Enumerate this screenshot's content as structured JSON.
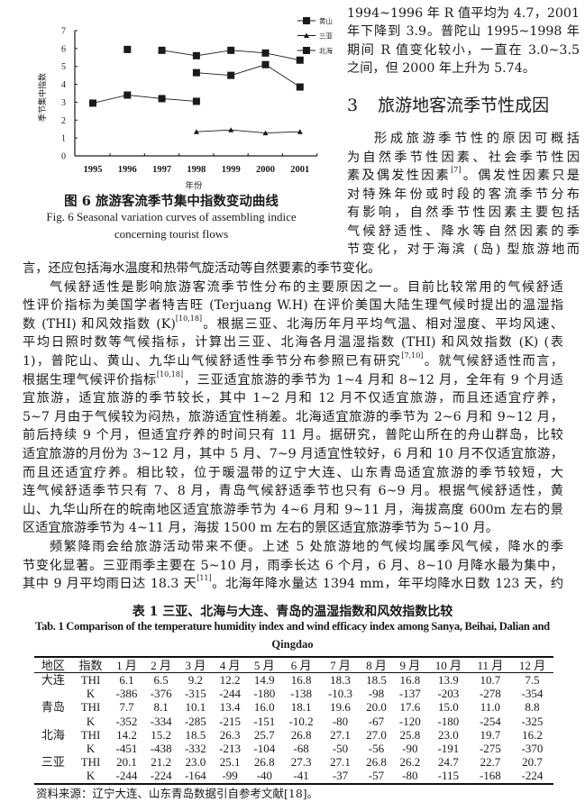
{
  "figure": {
    "caption_cn": "图 6  旅游客流季节集中指数变动曲线",
    "caption_en_line1": "Fig. 6  Seasonal variation curves of assembling indice",
    "caption_en_line2": "concerning tourist flows",
    "chart_data": {
      "type": "line",
      "xlabel": "年份",
      "ylabel": "季节集中指数",
      "x": [
        "1995",
        "1996",
        "1997",
        "1998",
        "1999",
        "2000",
        "2001"
      ],
      "ylim": [
        0,
        7
      ],
      "yticks": [
        "0",
        "1",
        "2",
        "3",
        "4",
        "5",
        "6",
        "7"
      ],
      "grid": false,
      "legend_position": "top-right",
      "legend": [
        {
          "name": "黄山",
          "marker": "square"
        },
        {
          "name": "三亚",
          "marker": "triangle"
        },
        {
          "name": "北海",
          "marker": "square"
        }
      ],
      "series": [
        {
          "marker": "square",
          "values": [
            null,
            5.95,
            5.9,
            5.6,
            5.9,
            5.75,
            5.35
          ]
        },
        {
          "marker": "square",
          "values": [
            null,
            null,
            null,
            4.65,
            4.5,
            5.1,
            3.85
          ]
        },
        {
          "marker": "square",
          "values": [
            2.95,
            3.4,
            3.2,
            3.05,
            null,
            null,
            null
          ]
        },
        {
          "marker": "triangle",
          "values": [
            null,
            null,
            null,
            1.35,
            1.45,
            1.28,
            1.35
          ]
        }
      ],
      "line_breaks": [
        [
          1,
          2
        ]
      ],
      "color": "#1a1a1a"
    }
  },
  "right_column": {
    "top_lines": [
      "1994~1996 年 R 值平均为 4.7，2001",
      "年下降到 3.9。普陀山 1995~1998 年",
      "期间 R 值变化较小，一直在 3.0~3.5",
      "之间，但 2000 年上升为 5.74。"
    ],
    "section_number": "3",
    "section_title": "旅游地客流季节性成因",
    "para_lines": [
      "形成旅游季节性的原因可概括",
      "为自然季节性因素、社会季节性因",
      "素及偶发性因素[7]。偶发性因素只是",
      "对特殊年份或时段的客流季节分布",
      "有影响，自然季节性因素主要包括",
      "气候舒适性、降水等自然因素的季",
      "节变化，对于海滨 (岛) 型旅游地而"
    ]
  },
  "body_lines": [
    "言，还应包括海水温度和热带气旋活动等自然要素的季节变化。",
    "气候舒适性是影响旅游客流季节性分布的主要原因之一。目前比较常用的气候舒适",
    "性评价指标为美国学者特吉旺 (Terjuang W.H) 在评价美国大陆生理气候时提出的温湿指",
    "数 (THI) 和风效指数 (K)[10,18]。根据三亚、北海历年月平均气温、相对湿度、平均风速、",
    "平均日照时数等气候指标，计算出三亚、北海各月温湿指数 (THI) 和风效指数 (K) (表",
    "1)，普陀山、黄山、九华山气候舒适性季节分布参照已有研究[7,10]。就气候舒适性而言，",
    "根据生理气候评价指标[10,18]，三亚适宜旅游的季节为 1~4 月和 8~12 月，全年有 9 个月适",
    "宜旅游，适宜旅游的季节较长，其中 1~2 月和 12 月不仅适宜旅游，而且还适宜疗养，",
    "5~7 月由于气候较为闷热，旅游适宜性稍差。北海适宜旅游的季节为 2~6 月和 9~12 月，",
    "前后持续 9 个月，但适宜疗养的时间只有 11 月。据研究，普陀山所在的舟山群岛，比较",
    "适宜旅游的月份为 3~12 月，其中 5 月、7~9 月适宜性较好，6 月和 10 月不仅适宜旅游，",
    "而且还适宜疗养。相比较，位于暖温带的辽宁大连、山东青岛适宜旅游的季节较短，大",
    "连气候舒适季节只有 7、8 月，青岛气候舒适季节也只有 6~9 月。根据气候舒适性，黄",
    "山、九华山所在的皖南地区适宜旅游季节为 4~6 月和 9~11 月，海拔高度 600m 左右的景",
    "区适宜旅游季节为 4~11 月，海拔 1500 m 左右的景区适宜旅游季节为 5~10 月。",
    "频繁降雨会给旅游活动带来不便。上述 5 处旅游地的气候均属季风气候，降水的季",
    "节变化显著。三亚雨季主要在 5~10 月，雨季长达 6 个月，6 月、8~10 月降水最为集中，",
    "其中 9 月平均雨日达 18.3 天[11]。北海年降水量达 1394 mm，年平均降水日数 123 天，约"
  ],
  "table": {
    "title_cn": "表 1  三亚、北海与大连、青岛的温湿指数和风效指数比较",
    "title_en_line1": "Tab. 1  Comparison of the temperature humidity index and wind efficacy index among Sanya, Beihai, Dalian and",
    "title_en_line2": "Qingdao",
    "headers": [
      "地区",
      "指数",
      "1 月",
      "2 月",
      "3 月",
      "4 月",
      "5 月",
      "6 月",
      "7 月",
      "8 月",
      "9 月",
      "10 月",
      "11 月",
      "12 月"
    ],
    "rows": [
      {
        "region": "大连",
        "index": "THI",
        "values": [
          "6.1",
          "6.5",
          "9.2",
          "12.2",
          "14.9",
          "16.8",
          "18.3",
          "18.5",
          "16.8",
          "13.9",
          "10.7",
          "7.5"
        ]
      },
      {
        "region": "",
        "index": "K",
        "values": [
          "-386",
          "-376",
          "-315",
          "-244",
          "-180",
          "-138",
          "-10.3",
          "-98",
          "-137",
          "-203",
          "-278",
          "-354"
        ]
      },
      {
        "region": "青岛",
        "index": "THI",
        "values": [
          "7.7",
          "8.1",
          "10.1",
          "13.4",
          "16.0",
          "18.1",
          "19.6",
          "20.0",
          "17.6",
          "15.0",
          "11.0",
          "8.8"
        ]
      },
      {
        "region": "",
        "index": "K",
        "values": [
          "-352",
          "-334",
          "-285",
          "-215",
          "-151",
          "-10.2",
          "-80",
          "-67",
          "-120",
          "-180",
          "-254",
          "-325"
        ]
      },
      {
        "region": "北海",
        "index": "THI",
        "values": [
          "14.2",
          "15.2",
          "18.5",
          "26.3",
          "25.7",
          "26.8",
          "27.1",
          "27.0",
          "25.8",
          "23.0",
          "19.7",
          "16.2"
        ]
      },
      {
        "region": "",
        "index": "K",
        "values": [
          "-451",
          "-438",
          "-332",
          "-213",
          "-104",
          "-68",
          "-50",
          "-56",
          "-90",
          "-191",
          "-275",
          "-370"
        ]
      },
      {
        "region": "三亚",
        "index": "THI",
        "values": [
          "20.1",
          "21.2",
          "23.0",
          "25.1",
          "26.8",
          "27.3",
          "27.1",
          "26.8",
          "26.2",
          "24.7",
          "22.7",
          "20.7"
        ]
      },
      {
        "region": "",
        "index": "K",
        "values": [
          "-244",
          "-224",
          "-164",
          "-99",
          "-40",
          "-41",
          "-37",
          "-57",
          "-80",
          "-115",
          "-168",
          "-224"
        ]
      }
    ],
    "source_note": "资料来源：辽宁大连、山东青岛数据引自参考文献[18]。"
  }
}
